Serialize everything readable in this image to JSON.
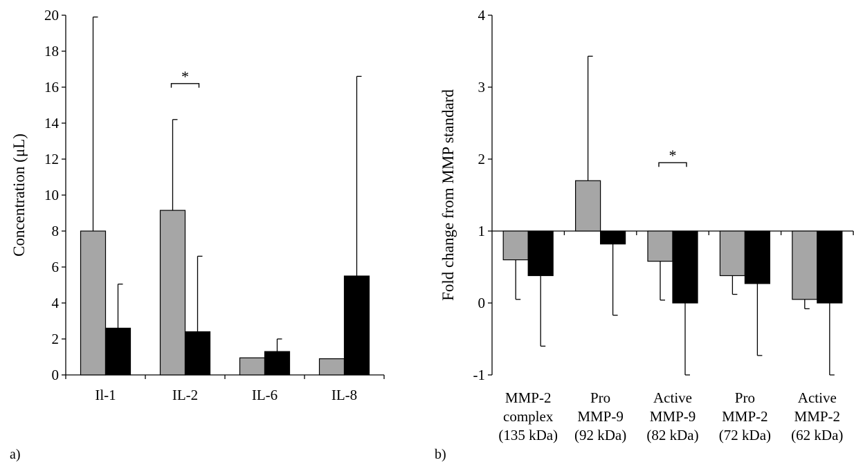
{
  "colors": {
    "group1": "#a6a6a6",
    "group2": "#000000",
    "axis": "#000000",
    "background": "#ffffff"
  },
  "chart_data": [
    {
      "type": "bar",
      "panel_label": "a)",
      "title": "",
      "xlabel": "",
      "ylabel": "Concentration (μL)",
      "ylim": [
        0,
        20
      ],
      "yticks": [
        0,
        2,
        4,
        6,
        8,
        10,
        12,
        14,
        16,
        18,
        20
      ],
      "ytick_labels": [
        "0",
        "2",
        "4",
        "6",
        "8",
        "10",
        "12",
        "14",
        "16",
        "18",
        "20"
      ],
      "grid": false,
      "legend": "none",
      "categories": [
        "Il-1",
        "IL-2",
        "IL-6",
        "IL-8"
      ],
      "series": [
        {
          "color": "#a6a6a6",
          "values": [
            8.0,
            9.15,
            0.95,
            0.9
          ],
          "error_upper": [
            19.9,
            14.2,
            0.95,
            0.9
          ]
        },
        {
          "color": "#000000",
          "values": [
            2.6,
            2.4,
            1.3,
            5.5
          ],
          "error_upper": [
            5.05,
            6.6,
            2.0,
            16.6
          ]
        }
      ],
      "annotations": [
        {
          "text": "*",
          "category_index": 1,
          "y": 16.2
        }
      ]
    },
    {
      "type": "bar",
      "panel_label": "b)",
      "title": "",
      "xlabel": "",
      "ylabel": "Fold change from MMP standard",
      "ylim": [
        -1,
        4
      ],
      "baseline": 1,
      "yticks": [
        -1,
        0,
        1,
        2,
        3,
        4
      ],
      "ytick_labels": [
        "-1",
        "0",
        "1",
        "2",
        "3",
        "4"
      ],
      "grid": false,
      "legend": "none",
      "categories": [
        [
          "MMP-2",
          "complex",
          "(135 kDa)"
        ],
        [
          "Pro",
          "MMP-9",
          "(92 kDa)"
        ],
        [
          "Active",
          "MMP-9",
          "(82 kDa)"
        ],
        [
          "Pro",
          "MMP-2",
          "(72 kDa)"
        ],
        [
          "Active",
          "MMP-2",
          "(62 kDa)"
        ]
      ],
      "series": [
        {
          "color": "#a6a6a6",
          "values": [
            0.6,
            1.7,
            0.58,
            0.38,
            0.05
          ],
          "error_end": [
            0.05,
            3.43,
            0.04,
            0.12,
            -0.08
          ]
        },
        {
          "color": "#000000",
          "values": [
            0.38,
            0.82,
            0.0,
            0.27,
            0.0
          ],
          "error_end": [
            -0.6,
            -0.17,
            -1.0,
            -0.73,
            -1.0
          ]
        }
      ],
      "annotations": [
        {
          "text": "*",
          "category_index": 2,
          "y": 1.95
        }
      ]
    }
  ]
}
